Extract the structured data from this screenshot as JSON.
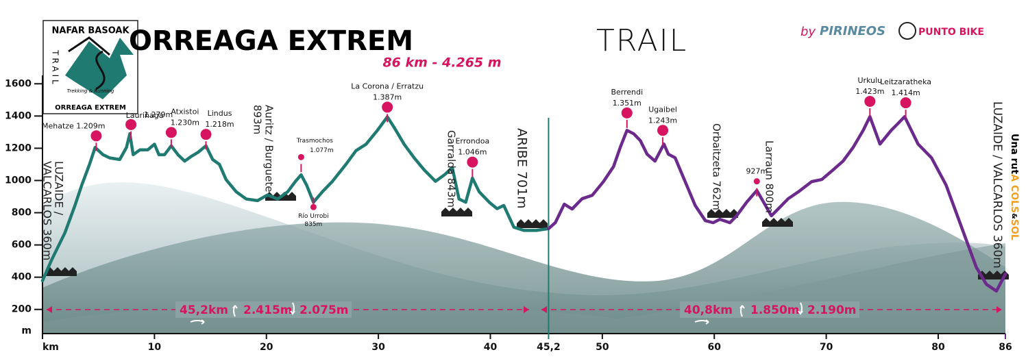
{
  "logo": {
    "title": "NAFAR BASOAK",
    "trail": "TRAIL",
    "tagline": "Trekking & Running",
    "name": "ORREAGA EXTREM"
  },
  "sponsor": {
    "by": "by",
    "name": "PIRINEOS",
    "shop": "PUNTO BIKE"
  },
  "credit": [
    "Una rut",
    "A COLS",
    "&",
    "SOL"
  ],
  "chart_data": {
    "type": "line",
    "title": "ORREAGA EXTREM",
    "title_light": "TRAIL",
    "subtitle": "86 km - 4.265 m",
    "xlim": [
      0,
      86
    ],
    "ylim": [
      50,
      1750
    ],
    "xticks": [
      {
        "value": 0,
        "label": "km"
      },
      10,
      20,
      30,
      40,
      {
        "value": 45.2,
        "label": "45,2"
      },
      50,
      60,
      70,
      80,
      86
    ],
    "yticks": [
      200,
      400,
      600,
      800,
      1000,
      1200,
      1400,
      1600
    ],
    "y_unit": "m",
    "series": [
      {
        "color": "#1f7a72",
        "x": [
          0,
          0.8,
          2.0,
          2.9,
          3.5,
          4.2,
          4.7,
          5.4,
          6.0,
          6.9,
          7.5,
          7.8,
          8.1,
          8.7,
          9.4,
          10.0,
          10.4,
          10.9,
          11.5,
          12.1,
          12.7,
          13.3,
          13.9,
          14.6,
          15.2,
          15.8,
          16.4,
          17.3,
          18.2,
          19.2,
          20.1,
          21.0,
          21.9,
          22.6,
          23.1,
          23.6,
          24.2,
          25.0,
          25.9,
          27.1,
          28.0,
          28.9,
          29.9,
          30.8,
          31.4,
          32.3,
          33.2,
          34.1,
          35.1,
          35.9,
          36.6,
          37.2,
          37.8,
          38.4,
          39.0,
          39.9,
          40.6,
          41.2,
          42.1,
          43.0,
          44.1,
          45.2
        ],
        "values": [
          378,
          505,
          675,
          845,
          970,
          1100,
          1205,
          1160,
          1140,
          1130,
          1205,
          1290,
          1160,
          1190,
          1190,
          1225,
          1160,
          1160,
          1215,
          1160,
          1120,
          1150,
          1175,
          1215,
          1130,
          1100,
          1005,
          930,
          885,
          875,
          910,
          885,
          930,
          995,
          1035,
          970,
          865,
          930,
          995,
          1100,
          1185,
          1225,
          1310,
          1395,
          1330,
          1225,
          1140,
          1065,
          995,
          1035,
          1080,
          885,
          865,
          1015,
          930,
          865,
          825,
          845,
          710,
          690,
          690,
          701
        ]
      },
      {
        "color": "#6b2a8c",
        "x": [
          45.2,
          45.8,
          46.6,
          47.3,
          48.2,
          49.1,
          50.1,
          51.0,
          51.6,
          52.2,
          52.8,
          53.4,
          54.0,
          54.7,
          55.5,
          55.9,
          56.5,
          57.4,
          58.3,
          59.2,
          59.9,
          60.5,
          61.4,
          62.0,
          62.9,
          63.8,
          64.4,
          65.1,
          65.7,
          66.6,
          67.5,
          68.7,
          69.6,
          70.6,
          71.5,
          72.4,
          73.3,
          73.9,
          74.8,
          75.8,
          76.4,
          77.0,
          78.2,
          79.4,
          80.7,
          81.6,
          82.5,
          83.4,
          84.3,
          85.2,
          86
        ],
        "values": [
          701,
          738,
          853,
          823,
          887,
          908,
          993,
          1086,
          1205,
          1311,
          1290,
          1247,
          1163,
          1120,
          1226,
          1163,
          1141,
          993,
          844,
          751,
          738,
          759,
          738,
          781,
          866,
          938,
          866,
          781,
          823,
          887,
          929,
          993,
          1006,
          1065,
          1120,
          1205,
          1311,
          1396,
          1226,
          1311,
          1353,
          1396,
          1226,
          1141,
          972,
          802,
          632,
          462,
          356,
          314,
          420
        ]
      }
    ],
    "peaks": {
      "names": [
        "Mehatze",
        "Lauriñaga",
        "Atxistoi",
        "Lindus",
        "Trasmochos",
        "Río Urrobi",
        "La Corona / Erratzu",
        "Errondoa",
        "Berrendi",
        "Ugaibel",
        null,
        "Urkulu",
        "Leitzaratheka"
      ],
      "x": [
        4.8,
        7.9,
        11.5,
        14.6,
        23.1,
        24.2,
        30.8,
        38.4,
        52.2,
        55.4,
        63.8,
        73.9,
        77.1
      ],
      "values": [
        1209,
        1279,
        1230,
        1218,
        1077,
        835,
        1387,
        1046,
        1351,
        1243,
        927,
        1423,
        1414
      ],
      "value_labels": [
        "1.209m",
        "1.279m",
        "1.230m",
        "1.218m",
        "1.077m",
        "835m",
        "1.387m",
        "1.046m",
        "1.351m",
        "1.243m",
        "927m",
        "1.423m",
        "1.414m"
      ],
      "color": "#d6145f"
    },
    "places": [
      [
        "LUZAIDE /",
        "VALCARLOS 360m"
      ],
      [
        "Auritz / Burguete",
        "893m"
      ],
      [
        "Garralda 843m"
      ],
      [
        "ARIBE 701m"
      ],
      [
        "Orbaitzeta 762m"
      ],
      [
        "Larraun 800m"
      ],
      [
        "LUZAIDE / VALCARLOS 360m"
      ]
    ],
    "summary": [
      {
        "distance": "45,2km",
        "ascent": "2.415m",
        "descent": "2.075m"
      },
      {
        "distance": "40,8km",
        "ascent": "1.850m",
        "descent": "2.190m"
      }
    ]
  }
}
